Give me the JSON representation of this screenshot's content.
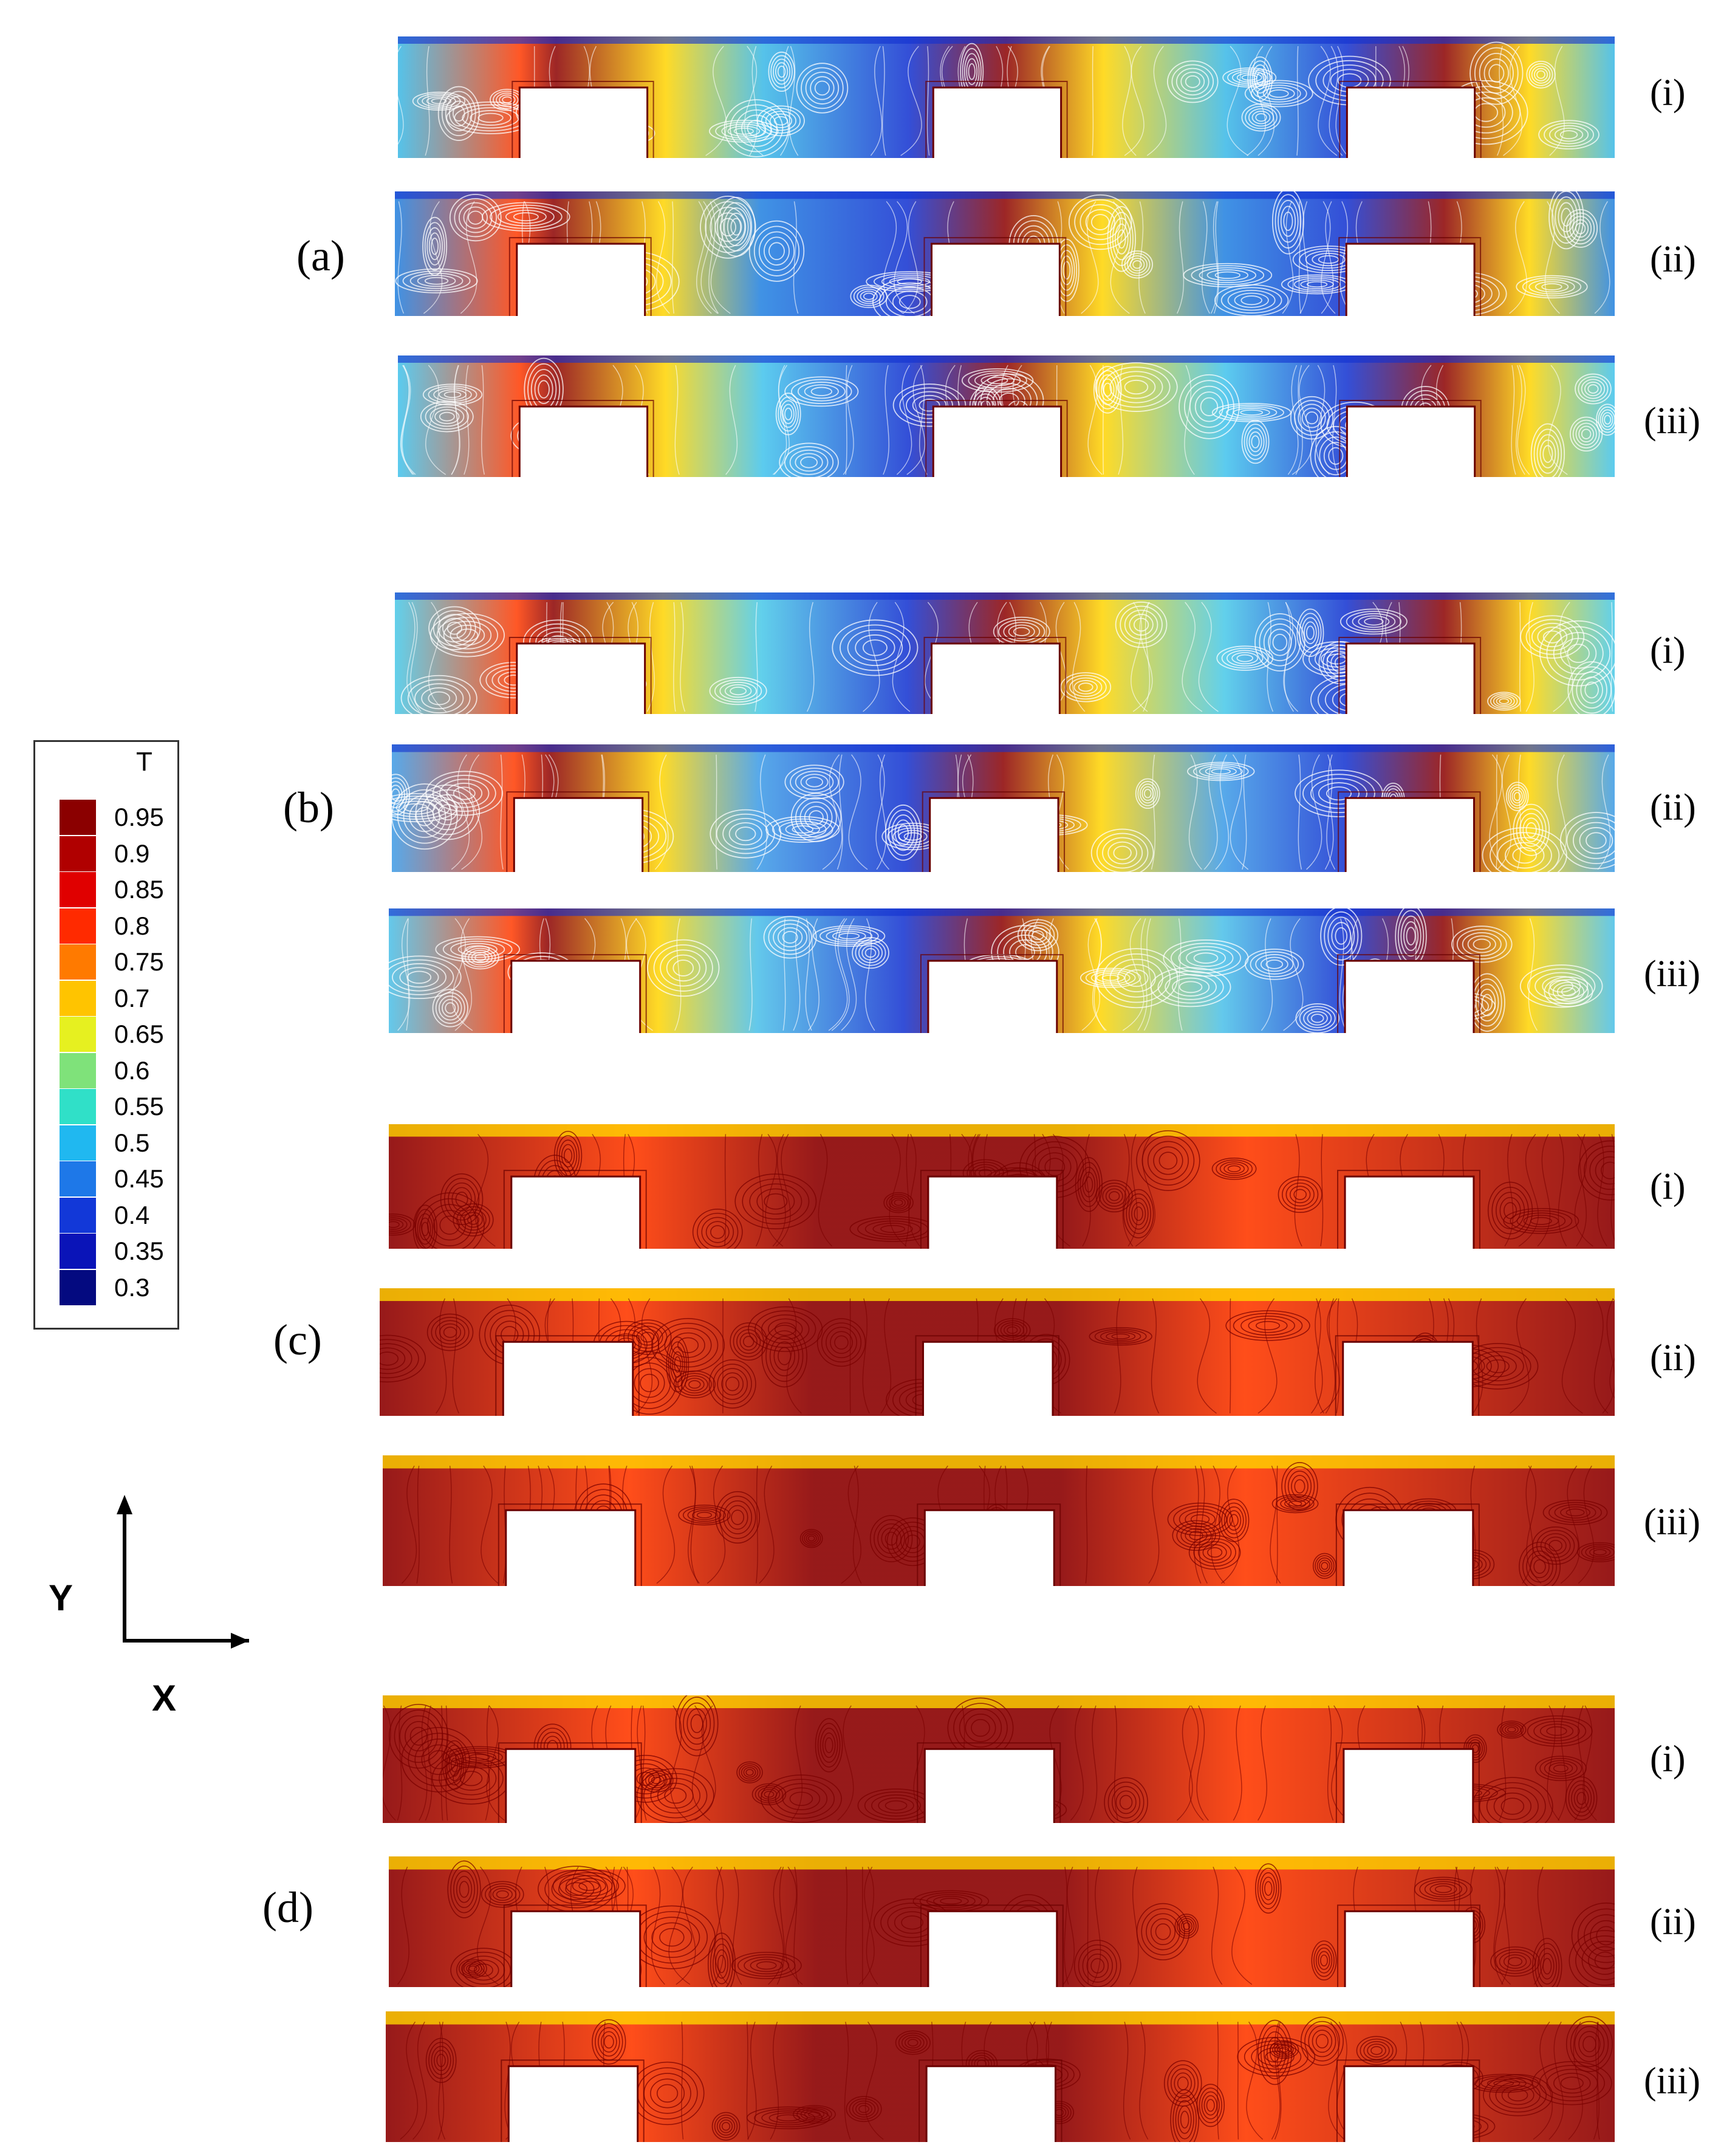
{
  "groups": [
    {
      "id": "a",
      "label": "(a)",
      "rows": [
        {
          "label": "(i)",
          "base": "#38b8e6",
          "fins_shift": 0
        },
        {
          "label": "(ii)",
          "base": "#1e7fe0",
          "fins_shift": 0
        },
        {
          "label": "(iii)",
          "base": "#3fc2ec",
          "fins_shift": 0
        }
      ]
    },
    {
      "id": "b",
      "label": "(b)",
      "rows": [
        {
          "label": "(i)",
          "base": "#46c8e8",
          "fins_shift": 0
        },
        {
          "label": "(ii)",
          "base": "#3a9ae6",
          "fins_shift": 0
        },
        {
          "label": "(iii)",
          "base": "#48bfe8",
          "fins_shift": 0
        }
      ]
    },
    {
      "id": "c",
      "label": "(c)",
      "rows": [
        {
          "label": "(i)",
          "base": "#a10a0a",
          "fins_shift": 0
        },
        {
          "label": "(ii)",
          "base": "#9c0c0c",
          "fins_shift": 0
        },
        {
          "label": "(iii)",
          "base": "#a00e0e",
          "fins_shift": 0
        }
      ]
    },
    {
      "id": "d",
      "label": "(d)",
      "rows": [
        {
          "label": "(i)",
          "base": "#a20c0c",
          "fins_shift": 0
        },
        {
          "label": "(ii)",
          "base": "#990a0a",
          "fins_shift": 0
        },
        {
          "label": "(iii)",
          "base": "#a00d0d",
          "fins_shift": 0
        }
      ]
    }
  ],
  "legend": {
    "title": "T",
    "levels": [
      {
        "label": "0.95",
        "color": "#8b0000"
      },
      {
        "label": "0.9",
        "color": "#b00000"
      },
      {
        "label": "0.85",
        "color": "#e00000"
      },
      {
        "label": "0.8",
        "color": "#ff2a00"
      },
      {
        "label": "0.75",
        "color": "#ff7a00"
      },
      {
        "label": "0.7",
        "color": "#ffc400"
      },
      {
        "label": "0.65",
        "color": "#e6f020"
      },
      {
        "label": "0.6",
        "color": "#7fe27a"
      },
      {
        "label": "0.55",
        "color": "#30e0c8"
      },
      {
        "label": "0.5",
        "color": "#20b8f0"
      },
      {
        "label": "0.45",
        "color": "#1e78e8"
      },
      {
        "label": "0.4",
        "color": "#1238d8"
      },
      {
        "label": "0.35",
        "color": "#0a14b8"
      },
      {
        "label": "0.3",
        "color": "#040a80"
      }
    ]
  },
  "axes": {
    "y_label": "Y",
    "x_label": "X"
  },
  "colors": {
    "hot": "#8b0000",
    "warm": "#ff3a00",
    "mid": "#ffd400",
    "cool": "#30d8d8",
    "cold": "#1030d0",
    "fin": "#6a0000"
  }
}
